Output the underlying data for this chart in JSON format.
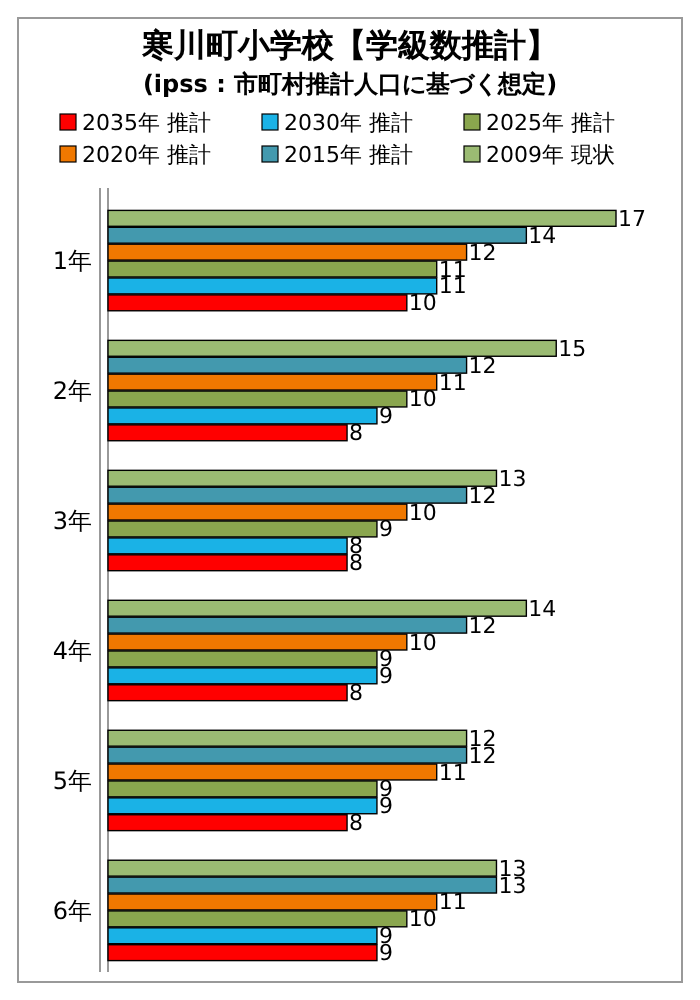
{
  "chart_data": {
    "type": "bar",
    "orientation": "horizontal",
    "title": "寒川町小学校【学級数推計】",
    "subtitle": "(ipss : 市町村推計人口に基づく想定)",
    "categories": [
      "1年",
      "2年",
      "3年",
      "4年",
      "5年",
      "6年"
    ],
    "series": [
      {
        "name": "2035年 推計",
        "color": "#ff0000",
        "values": [
          10,
          8,
          8,
          8,
          8,
          9
        ]
      },
      {
        "name": "2030年 推計",
        "color": "#1ab2e6",
        "values": [
          11,
          9,
          8,
          9,
          9,
          9
        ]
      },
      {
        "name": "2025年 推計",
        "color": "#8aa64e",
        "values": [
          11,
          10,
          9,
          9,
          9,
          10
        ]
      },
      {
        "name": "2020年 推計",
        "color": "#f07800",
        "values": [
          12,
          11,
          10,
          10,
          11,
          11
        ]
      },
      {
        "name": "2015年 推計",
        "color": "#4399ae",
        "values": [
          14,
          12,
          12,
          12,
          12,
          13
        ]
      },
      {
        "name": "2009年 現状",
        "color": "#9bbb73",
        "values": [
          17,
          15,
          13,
          14,
          12,
          13
        ]
      }
    ],
    "data_labels": true,
    "legend": "top",
    "grid": false
  }
}
